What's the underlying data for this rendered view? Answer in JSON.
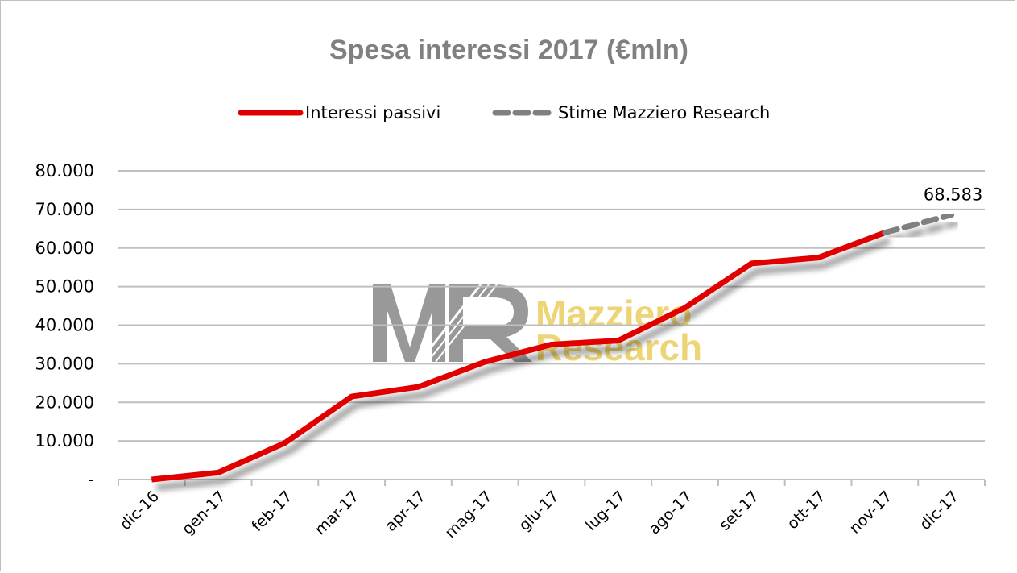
{
  "chart_data": {
    "type": "line",
    "title": "Spesa interessi 2017 (€mln)",
    "xlabel": "",
    "ylabel": "",
    "categories": [
      "dic-16",
      "gen-17",
      "feb-17",
      "mar-17",
      "apr-17",
      "mag-17",
      "giu-17",
      "lug-17",
      "ago-17",
      "set-17",
      "ott-17",
      "nov-17",
      "dic-17"
    ],
    "y_ticks": [
      "-",
      "10.000",
      "20.000",
      "30.000",
      "40.000",
      "50.000",
      "60.000",
      "70.000",
      "80.000"
    ],
    "ylim": [
      0,
      80000
    ],
    "grid": true,
    "legend_position": "top",
    "series": [
      {
        "name": "Interessi passivi",
        "color": "#e00000",
        "style": "solid",
        "values": [
          0,
          1800,
          9500,
          21500,
          24000,
          30500,
          35000,
          36000,
          44500,
          56000,
          57500,
          64000,
          null
        ]
      },
      {
        "name": "Stime Mazziero Research",
        "color": "#808080",
        "style": "dashed",
        "values": [
          null,
          null,
          null,
          null,
          null,
          null,
          null,
          null,
          null,
          null,
          null,
          64000,
          68583
        ]
      }
    ],
    "annotations": [
      {
        "label": "68.583",
        "category": "dic-17",
        "value": 68583
      }
    ]
  },
  "watermark": {
    "logo_letters": "MR",
    "line1": "Mazziero",
    "line2": "Research",
    "color": "#e8c84a"
  }
}
